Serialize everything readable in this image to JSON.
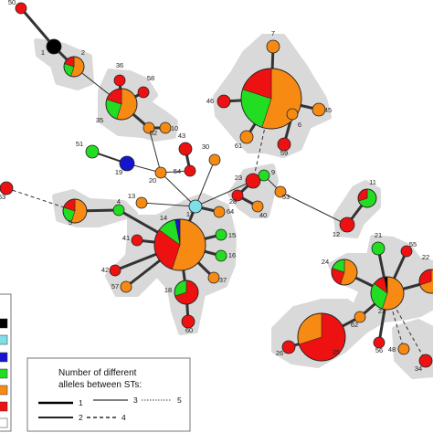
{
  "colors": {
    "black": "#000000",
    "cyan": "#7fdfe8",
    "blue": "#1515d0",
    "green": "#22dd22",
    "orange": "#f78a12",
    "red": "#ee1111",
    "white": "#ffffff",
    "hull": "#d9d9d9"
  },
  "legend": {
    "title_line1": "Number of different",
    "title_line2": "alleles between STs:",
    "items": [
      "1",
      "2",
      "3",
      "4",
      "5"
    ]
  },
  "network": {
    "nodes": [
      {
        "id": "50",
        "label": "50",
        "colors": [
          "red"
        ]
      },
      {
        "id": "1",
        "label": "1",
        "colors": [
          "black"
        ]
      },
      {
        "id": "2",
        "label": "2",
        "colors": [
          "orange",
          "green",
          "red"
        ]
      },
      {
        "id": "36",
        "label": "36",
        "colors": [
          "red"
        ]
      },
      {
        "id": "58",
        "label": "58",
        "colors": [
          "red"
        ]
      },
      {
        "id": "35",
        "label": "35",
        "colors": [
          "orange",
          "green",
          "red"
        ]
      },
      {
        "id": "52",
        "label": "52",
        "colors": [
          "orange"
        ]
      },
      {
        "id": "10",
        "label": "10",
        "colors": [
          "orange"
        ]
      },
      {
        "id": "7",
        "label": "7",
        "colors": [
          "orange"
        ]
      },
      {
        "id": "46",
        "label": "46",
        "colors": [
          "red"
        ]
      },
      {
        "id": "45",
        "label": "45",
        "colors": [
          "orange"
        ]
      },
      {
        "id": "big7",
        "label": "",
        "colors": [
          "orange",
          "green",
          "red"
        ]
      },
      {
        "id": "61",
        "label": "61",
        "colors": [
          "orange"
        ]
      },
      {
        "id": "6",
        "label": "6",
        "colors": [
          "orange"
        ]
      },
      {
        "id": "59",
        "label": "59",
        "colors": [
          "red"
        ]
      },
      {
        "id": "43",
        "label": "43",
        "colors": [
          "red"
        ]
      },
      {
        "id": "54",
        "label": "54",
        "colors": [
          "red"
        ]
      },
      {
        "id": "30",
        "label": "30",
        "colors": [
          "orange"
        ]
      },
      {
        "id": "51",
        "label": "51",
        "colors": [
          "green"
        ]
      },
      {
        "id": "19",
        "label": "19",
        "colors": [
          "blue"
        ]
      },
      {
        "id": "20",
        "label": "20",
        "colors": [
          "orange"
        ]
      },
      {
        "id": "23a",
        "label": "23",
        "colors": [
          "red"
        ]
      },
      {
        "id": "9",
        "label": "9",
        "colors": [
          "green"
        ]
      },
      {
        "id": "28",
        "label": "28",
        "colors": [
          "red"
        ]
      },
      {
        "id": "40",
        "label": "40",
        "colors": [
          "orange"
        ]
      },
      {
        "id": "53",
        "label": "53",
        "colors": [
          "orange"
        ]
      },
      {
        "id": "63",
        "label": "63",
        "colors": [
          "red"
        ]
      },
      {
        "id": "5",
        "label": "5",
        "colors": [
          "orange",
          "green",
          "red"
        ]
      },
      {
        "id": "4",
        "label": "4",
        "colors": [
          "green"
        ]
      },
      {
        "id": "13",
        "label": "13",
        "colors": [
          "orange"
        ]
      },
      {
        "id": "17",
        "label": "17",
        "colors": [
          "cyan"
        ]
      },
      {
        "id": "64",
        "label": "64",
        "colors": [
          "orange"
        ]
      },
      {
        "id": "14",
        "label": "14",
        "colors": [
          "orange",
          "red",
          "green",
          "blue"
        ]
      },
      {
        "id": "15",
        "label": "15",
        "colors": [
          "green"
        ]
      },
      {
        "id": "16",
        "label": "16",
        "colors": [
          "green"
        ]
      },
      {
        "id": "41",
        "label": "41",
        "colors": [
          "red"
        ]
      },
      {
        "id": "42",
        "label": "42",
        "colors": [
          "red"
        ]
      },
      {
        "id": "57",
        "label": "57",
        "colors": [
          "orange"
        ]
      },
      {
        "id": "18",
        "label": "18",
        "colors": [
          "red",
          "green"
        ]
      },
      {
        "id": "37",
        "label": "37",
        "colors": [
          "orange"
        ]
      },
      {
        "id": "60",
        "label": "60",
        "colors": [
          "red"
        ]
      },
      {
        "id": "11",
        "label": "11",
        "colors": [
          "green",
          "red"
        ]
      },
      {
        "id": "12",
        "label": "12",
        "colors": [
          "red"
        ]
      },
      {
        "id": "21",
        "label": "21",
        "colors": [
          "green"
        ]
      },
      {
        "id": "55",
        "label": "55",
        "colors": [
          "red"
        ]
      },
      {
        "id": "24",
        "label": "24",
        "colors": [
          "orange",
          "red",
          "green"
        ]
      },
      {
        "id": "23b",
        "label": "23",
        "colors": [
          "orange",
          "green",
          "red",
          "black"
        ]
      },
      {
        "id": "22",
        "label": "22",
        "colors": [
          "orange",
          "red"
        ]
      },
      {
        "id": "62",
        "label": "62",
        "colors": [
          "orange"
        ]
      },
      {
        "id": "25",
        "label": "25",
        "colors": [
          "red",
          "orange"
        ]
      },
      {
        "id": "26",
        "label": "26",
        "colors": [
          "red"
        ]
      },
      {
        "id": "56",
        "label": "56",
        "colors": [
          "red"
        ]
      },
      {
        "id": "48",
        "label": "48",
        "colors": [
          "orange"
        ]
      },
      {
        "id": "34",
        "label": "34",
        "colors": [
          "red"
        ]
      }
    ],
    "edges": [
      {
        "from": "50",
        "to": "1",
        "alleles": 1
      },
      {
        "from": "1",
        "to": "2",
        "alleles": 1
      },
      {
        "from": "2",
        "to": "35",
        "alleles": 3
      },
      {
        "from": "35",
        "to": "36",
        "alleles": 1
      },
      {
        "from": "35",
        "to": "58",
        "alleles": 1
      },
      {
        "from": "35",
        "to": "52",
        "alleles": 1
      },
      {
        "from": "52",
        "to": "10",
        "alleles": 1
      },
      {
        "from": "52",
        "to": "20",
        "alleles": 3
      },
      {
        "from": "7",
        "to": "big7",
        "alleles": 1
      },
      {
        "from": "big7",
        "to": "46",
        "alleles": 1
      },
      {
        "from": "big7",
        "to": "45",
        "alleles": 1
      },
      {
        "from": "big7",
        "to": "61",
        "alleles": 1
      },
      {
        "from": "big7",
        "to": "6",
        "alleles": 1
      },
      {
        "from": "6",
        "to": "59",
        "alleles": 1
      },
      {
        "from": "big7",
        "to": "23a",
        "alleles": 4
      },
      {
        "from": "43",
        "to": "54",
        "alleles": 1
      },
      {
        "from": "54",
        "to": "20",
        "alleles": 3
      },
      {
        "from": "51",
        "to": "19",
        "alleles": 2
      },
      {
        "from": "19",
        "to": "20",
        "alleles": 3
      },
      {
        "from": "20",
        "to": "17",
        "alleles": 3
      },
      {
        "from": "30",
        "to": "17",
        "alleles": 3
      },
      {
        "from": "17",
        "to": "23a",
        "alleles": 3
      },
      {
        "from": "23a",
        "to": "9",
        "alleles": 1
      },
      {
        "from": "23a",
        "to": "28",
        "alleles": 1
      },
      {
        "from": "28",
        "to": "40",
        "alleles": 1
      },
      {
        "from": "9",
        "to": "53",
        "alleles": 3
      },
      {
        "from": "53",
        "to": "12",
        "alleles": 3
      },
      {
        "from": "63",
        "to": "5",
        "alleles": 4
      },
      {
        "from": "5",
        "to": "4",
        "alleles": 1
      },
      {
        "from": "4",
        "to": "14",
        "alleles": 1
      },
      {
        "from": "14",
        "to": "17",
        "alleles": 1
      },
      {
        "from": "13",
        "to": "17",
        "alleles": 3
      },
      {
        "from": "17",
        "to": "64",
        "alleles": 1
      },
      {
        "from": "14",
        "to": "15",
        "alleles": 1
      },
      {
        "from": "14",
        "to": "16",
        "alleles": 1
      },
      {
        "from": "14",
        "to": "41",
        "alleles": 1
      },
      {
        "from": "14",
        "to": "42",
        "alleles": 1
      },
      {
        "from": "14",
        "to": "57",
        "alleles": 1
      },
      {
        "from": "14",
        "to": "18",
        "alleles": 1
      },
      {
        "from": "14",
        "to": "37",
        "alleles": 1
      },
      {
        "from": "18",
        "to": "60",
        "alleles": 1
      },
      {
        "from": "11",
        "to": "12",
        "alleles": 1
      },
      {
        "from": "21",
        "to": "23b",
        "alleles": 1
      },
      {
        "from": "55",
        "to": "23b",
        "alleles": 1
      },
      {
        "from": "24",
        "to": "23b",
        "alleles": 1
      },
      {
        "from": "22",
        "to": "23b",
        "alleles": 1
      },
      {
        "from": "62",
        "to": "23b",
        "alleles": 1
      },
      {
        "from": "62",
        "to": "25",
        "alleles": 1
      },
      {
        "from": "25",
        "to": "26",
        "alleles": 1
      },
      {
        "from": "23b",
        "to": "56",
        "alleles": 1
      },
      {
        "from": "23b",
        "to": "48",
        "alleles": 4
      },
      {
        "from": "23b",
        "to": "34",
        "alleles": 4
      }
    ]
  }
}
